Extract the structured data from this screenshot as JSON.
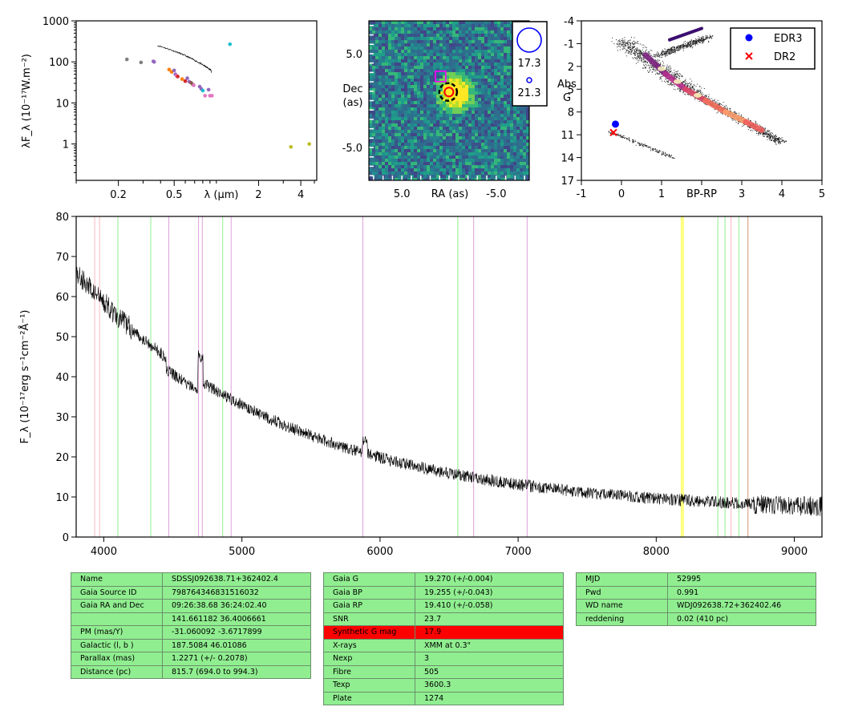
{
  "sed": {
    "ylabel": "λF_λ (10⁻¹⁷W.m⁻²)",
    "xlabel": "λ (μm)",
    "yticks": [
      {
        "v": 1,
        "l": "1"
      },
      {
        "v": 10,
        "l": "10"
      },
      {
        "v": 100,
        "l": "100"
      },
      {
        "v": 1000,
        "l": "1000"
      }
    ],
    "xticks": [
      {
        "v": 0.2,
        "l": "0.2"
      },
      {
        "v": 0.5,
        "l": "0.5"
      },
      {
        "v": 2,
        "l": "2"
      },
      {
        "v": 4,
        "l": "4"
      }
    ],
    "points": [
      {
        "x": 0.23,
        "y": 115,
        "c": "#7f7f7f"
      },
      {
        "x": 0.29,
        "y": 97,
        "c": "#7f7f7f"
      },
      {
        "x": 0.355,
        "y": 103,
        "c": "#9467bd"
      },
      {
        "x": 0.36,
        "y": 100,
        "c": "#9467bd"
      },
      {
        "x": 0.46,
        "y": 65,
        "c": "#ff7f0e"
      },
      {
        "x": 0.48,
        "y": 57,
        "c": "#ff7f0e"
      },
      {
        "x": 0.5,
        "y": 62,
        "c": "#9467bd"
      },
      {
        "x": 0.51,
        "y": 50,
        "c": "#9467bd"
      },
      {
        "x": 0.52,
        "y": 46,
        "c": "#e377c2"
      },
      {
        "x": 0.53,
        "y": 44,
        "c": "#d62728"
      },
      {
        "x": 0.57,
        "y": 38,
        "c": "#ff7f0e"
      },
      {
        "x": 0.6,
        "y": 34,
        "c": "#d62728"
      },
      {
        "x": 0.62,
        "y": 40,
        "c": "#9467bd"
      },
      {
        "x": 0.64,
        "y": 33,
        "c": "#9467bd"
      },
      {
        "x": 0.66,
        "y": 31,
        "c": "#8c564b"
      },
      {
        "x": 0.68,
        "y": 28,
        "c": "#8c564b"
      },
      {
        "x": 0.69,
        "y": 27,
        "c": "#e377c2"
      },
      {
        "x": 0.76,
        "y": 25,
        "c": "#9467bd"
      },
      {
        "x": 0.78,
        "y": 22,
        "c": "#9467bd"
      },
      {
        "x": 0.8,
        "y": 20,
        "c": "#17becf"
      },
      {
        "x": 0.83,
        "y": 15,
        "c": "#e377c2"
      },
      {
        "x": 0.88,
        "y": 21,
        "c": "#9467bd"
      },
      {
        "x": 0.9,
        "y": 15,
        "c": "#e377c2"
      },
      {
        "x": 0.93,
        "y": 15,
        "c": "#e377c2"
      },
      {
        "x": 1.25,
        "y": 270,
        "c": "#17becf"
      },
      {
        "x": 3.4,
        "y": 0.85,
        "c": "#bcbd22"
      },
      {
        "x": 4.6,
        "y": 1.0,
        "c": "#bcbd22"
      }
    ],
    "spectrum_range": {
      "x": [
        0.38,
        0.92
      ],
      "y": [
        250,
        62
      ]
    }
  },
  "image_panel": {
    "xlabel": "RA (as)",
    "ylabel_lines": [
      "Dec",
      "(as)"
    ],
    "xticks": [
      {
        "v": 5,
        "l": "5.0"
      },
      {
        "v": -5,
        "l": "-5.0"
      }
    ],
    "yticks": [
      {
        "v": 5,
        "l": "5.0"
      },
      {
        "v": -5,
        "l": "-5.0"
      }
    ],
    "legend": [
      "17.3",
      "21.3"
    ],
    "colors": {
      "bg": "#2f6d8e",
      "source": "#fde725",
      "dashed": "#000000",
      "gaia": "#ff0000",
      "box": "#ff00ff"
    }
  },
  "hr": {
    "xlabel": "BP-RP",
    "ylabel_lines": [
      "Abs",
      "G"
    ],
    "xticks": [
      {
        "v": -1,
        "l": "-1"
      },
      {
        "v": 0,
        "l": "0"
      },
      {
        "v": 1,
        "l": "1"
      },
      {
        "v": 3,
        "l": "3"
      },
      {
        "v": 4,
        "l": "4"
      },
      {
        "v": 5,
        "l": "5"
      }
    ],
    "yticks": [
      {
        "v": -4,
        "l": "-4"
      },
      {
        "v": -1,
        "l": "-1"
      },
      {
        "v": 2,
        "l": "2"
      },
      {
        "v": 5,
        "l": "5"
      },
      {
        "v": 8,
        "l": "8"
      },
      {
        "v": 11,
        "l": "11"
      },
      {
        "v": 14,
        "l": "14"
      },
      {
        "v": 17,
        "l": "17"
      }
    ],
    "legend": [
      {
        "label": "EDR3",
        "marker": "dot",
        "color": "#0000ff"
      },
      {
        "label": "DR2",
        "marker": "x",
        "color": "#ff0000"
      }
    ],
    "points": [
      {
        "name": "EDR3",
        "x": -0.15,
        "y": 9.6
      },
      {
        "name": "DR2",
        "x": -0.2,
        "y": 10.7
      }
    ]
  },
  "spectrum": {
    "ylabel": "F_λ (10⁻¹⁷erg s⁻¹cm⁻²Å⁻¹)",
    "xlim": [
      3800,
      9200
    ],
    "ylim": [
      0,
      80
    ],
    "xticks": [
      4000,
      5000,
      6000,
      7000,
      8000,
      9000
    ],
    "yticks": [
      0,
      10,
      20,
      30,
      40,
      50,
      60,
      70,
      80
    ],
    "lines": [
      {
        "x": 3934,
        "c": "#ffb6c1"
      },
      {
        "x": 3969,
        "c": "#ffb6c1"
      },
      {
        "x": 4102,
        "c": "#90ee90"
      },
      {
        "x": 4340,
        "c": "#90ee90"
      },
      {
        "x": 4471,
        "c": "#dda0dd"
      },
      {
        "x": 4686,
        "c": "#dda0dd"
      },
      {
        "x": 4713,
        "c": "#dda0dd"
      },
      {
        "x": 4861,
        "c": "#90ee90"
      },
      {
        "x": 4922,
        "c": "#dda0dd"
      },
      {
        "x": 5876,
        "c": "#dda0dd"
      },
      {
        "x": 6563,
        "c": "#90ee90"
      },
      {
        "x": 6678,
        "c": "#dda0dd"
      },
      {
        "x": 7065,
        "c": "#dda0dd"
      },
      {
        "x": 8183,
        "c": "#ffff00"
      },
      {
        "x": 8195,
        "c": "#ffff00"
      },
      {
        "x": 8446,
        "c": "#90ee90"
      },
      {
        "x": 8498,
        "c": "#90ee90"
      },
      {
        "x": 8542,
        "c": "#ffb6c1"
      },
      {
        "x": 8598,
        "c": "#90ee90"
      },
      {
        "x": 8662,
        "c": "#ffb6c1"
      },
      {
        "x": 8665,
        "c": "#d2b48c"
      }
    ]
  },
  "table1": [
    [
      "Name",
      "SDSSJ092638.71+362402.4"
    ],
    [
      "Gaia Source ID",
      "798764346831516032"
    ],
    [
      "Gaia RA and Dec",
      "09:26:38.68    36:24:02.40"
    ],
    [
      "",
      "141.661182    36.4006661"
    ],
    [
      "PM (mas/Y)",
      "-31.060092    -3.6717899"
    ],
    [
      "Galactic (l, b )",
      "187.5084    46.01086"
    ],
    [
      "Parallax (mas)",
      "1.2271 (+/- 0.2078)"
    ],
    [
      "Distance (pc)",
      "815.7 (694.0 to 994.3)"
    ]
  ],
  "table2": [
    [
      "Gaia G",
      "19.270 (+/-0.004)"
    ],
    [
      "Gaia BP",
      "19.255 (+/-0.043)"
    ],
    [
      "Gaia RP",
      "19.410 (+/-0.058)"
    ],
    [
      "SNR",
      "23.7"
    ],
    [
      "Synthetic G mag",
      "17.9"
    ],
    [
      "X-rays",
      "XMM at 0.3\""
    ],
    [
      "Nexp",
      "3"
    ],
    [
      "Fibre",
      "505"
    ],
    [
      "Texp",
      "3600.3"
    ],
    [
      "Plate",
      "1274"
    ]
  ],
  "table3": [
    [
      "MJD",
      "52995"
    ],
    [
      "Pwd",
      "0.991"
    ],
    [
      "WD name",
      "WDJ092638.72+362402.46"
    ],
    [
      "reddening",
      "0.02 (410 pc)"
    ]
  ]
}
